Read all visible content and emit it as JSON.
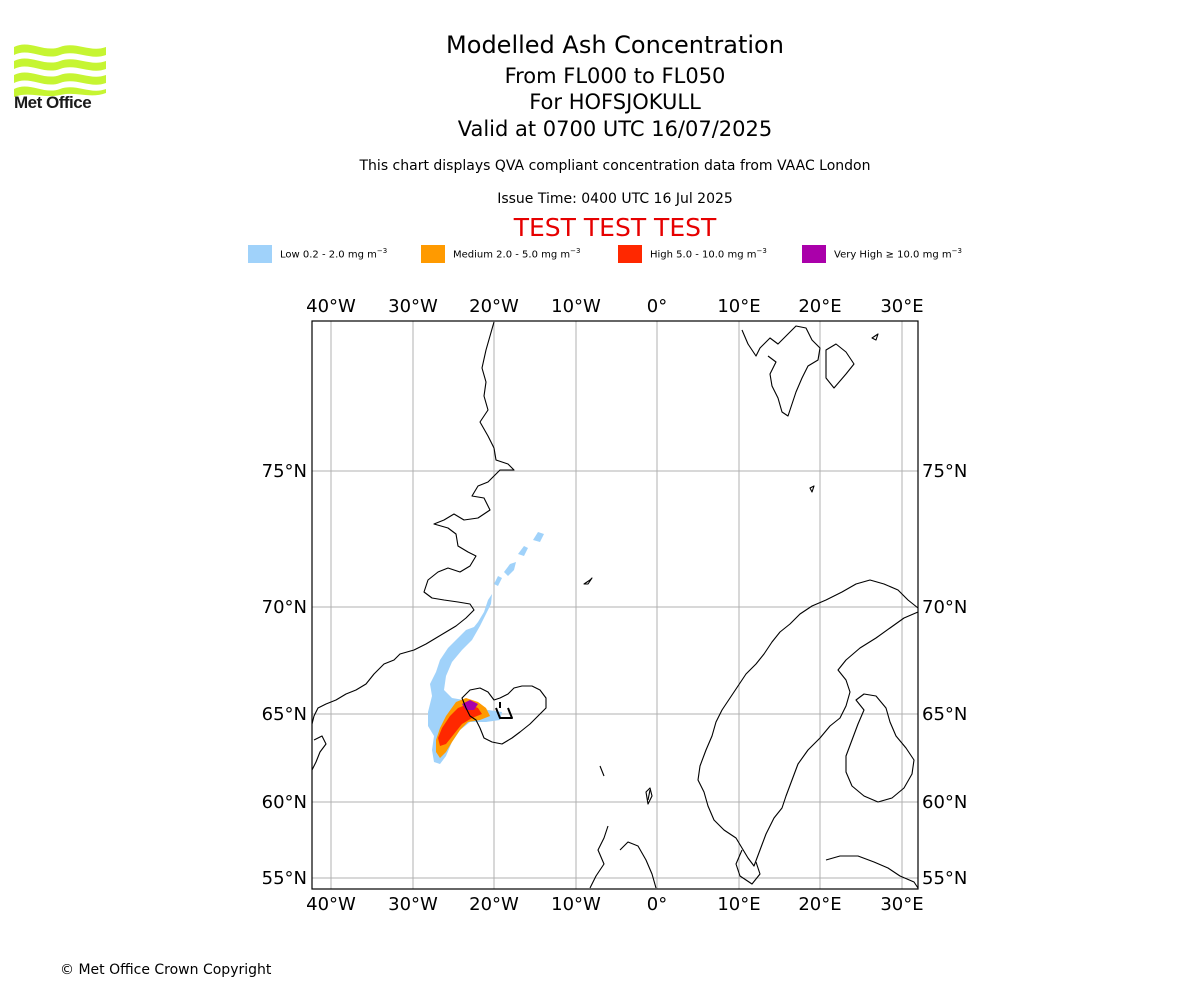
{
  "header": {
    "title": "Modelled Ash Concentration",
    "levels": "From FL000 to FL050",
    "volcano": "For HOFSJOKULL",
    "valid": "Valid at 0700 UTC 16/07/2025",
    "description": "This chart displays QVA compliant concentration data from VAAC London",
    "issue_time": "Issue Time: 0400 UTC 16 Jul 2025",
    "test_banner": "TEST TEST TEST"
  },
  "logo": {
    "text": "Met Office"
  },
  "legend": [
    {
      "label_main": "Low 0.2 - 2.0 mg m",
      "exp": "−3",
      "color": "#a0d2fa"
    },
    {
      "label_main": "Medium 2.0 - 5.0 mg m",
      "exp": "−3",
      "color": "#ff9a00"
    },
    {
      "label_main": "High 5.0 - 10.0 mg m",
      "exp": "−3",
      "color": "#ff2800"
    },
    {
      "label_main": "Very High ≥ 10.0 mg m",
      "exp": "−3",
      "color": "#aa00aa"
    }
  ],
  "map": {
    "lon_labels": [
      "40°W",
      "30°W",
      "20°W",
      "10°W",
      "0°",
      "10°E",
      "20°E",
      "30°E"
    ],
    "lat_labels": [
      "75°N",
      "70°N",
      "65°N",
      "60°N",
      "55°N"
    ],
    "grid": true
  },
  "footer": {
    "copyright": "© Met Office Crown Copyright"
  }
}
